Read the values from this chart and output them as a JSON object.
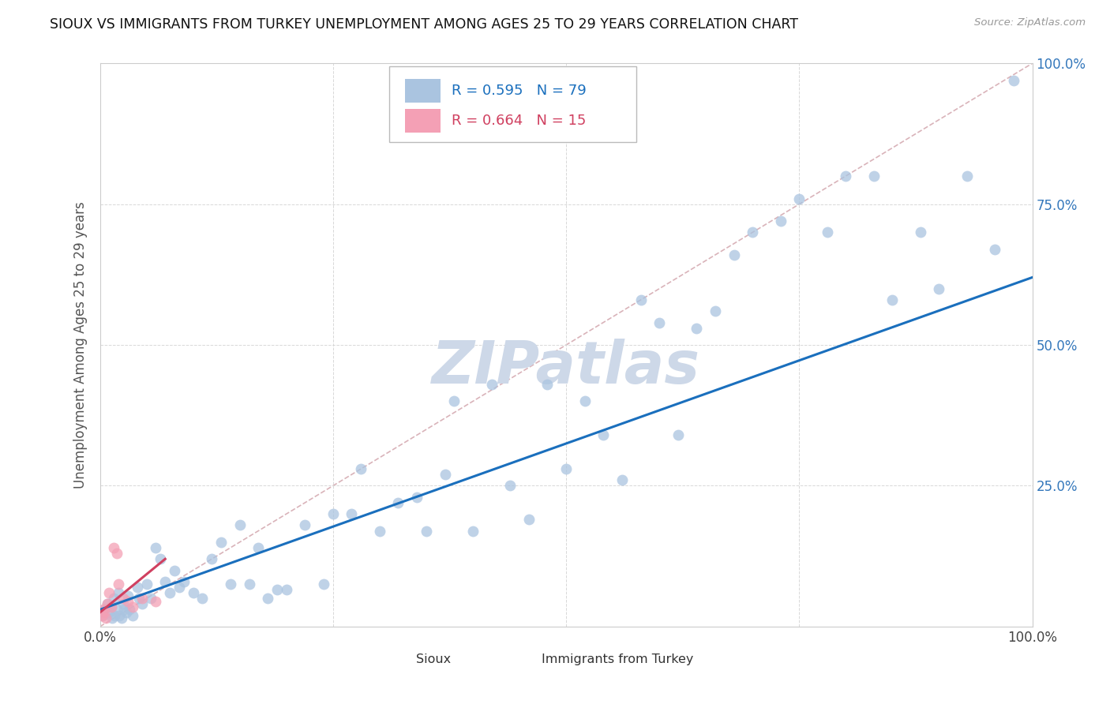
{
  "title": "SIOUX VS IMMIGRANTS FROM TURKEY UNEMPLOYMENT AMONG AGES 25 TO 29 YEARS CORRELATION CHART",
  "source": "Source: ZipAtlas.com",
  "ylabel": "Unemployment Among Ages 25 to 29 years",
  "legend_label1": "Sioux",
  "legend_label2": "Immigrants from Turkey",
  "R1": "0.595",
  "N1": "79",
  "R2": "0.664",
  "N2": "15",
  "sioux_color": "#aac4e0",
  "turkey_color": "#f4a0b5",
  "trendline1_color": "#1a6fbd",
  "trendline2_color": "#d04060",
  "diagonal_color": "#d0a0a8",
  "watermark_color": "#cdd8e8",
  "sioux_x": [
    0.3,
    0.5,
    0.8,
    1.0,
    1.2,
    1.3,
    1.5,
    1.6,
    1.8,
    2.0,
    2.1,
    2.3,
    2.5,
    2.6,
    2.8,
    3.0,
    3.2,
    3.5,
    4.0,
    4.2,
    4.5,
    5.0,
    5.5,
    6.0,
    6.5,
    7.0,
    7.5,
    8.0,
    8.5,
    9.0,
    10.0,
    11.0,
    12.0,
    13.0,
    14.0,
    15.0,
    16.0,
    17.0,
    18.0,
    19.0,
    20.0,
    22.0,
    24.0,
    25.0,
    27.0,
    28.0,
    30.0,
    32.0,
    34.0,
    35.0,
    37.0,
    38.0,
    40.0,
    42.0,
    44.0,
    46.0,
    48.0,
    50.0,
    52.0,
    54.0,
    56.0,
    58.0,
    60.0,
    62.0,
    64.0,
    66.0,
    68.0,
    70.0,
    73.0,
    75.0,
    78.0,
    80.0,
    83.0,
    85.0,
    88.0,
    90.0,
    93.0,
    96.0,
    98.0
  ],
  "sioux_y": [
    2.0,
    3.0,
    4.0,
    2.5,
    3.5,
    1.5,
    5.0,
    2.0,
    3.0,
    6.0,
    2.0,
    1.5,
    4.0,
    3.0,
    2.5,
    5.5,
    3.0,
    2.0,
    7.0,
    5.0,
    4.0,
    7.5,
    5.0,
    14.0,
    12.0,
    8.0,
    6.0,
    10.0,
    7.0,
    8.0,
    6.0,
    5.0,
    12.0,
    15.0,
    7.5,
    18.0,
    7.5,
    14.0,
    5.0,
    6.5,
    6.5,
    18.0,
    7.5,
    20.0,
    20.0,
    28.0,
    17.0,
    22.0,
    23.0,
    17.0,
    27.0,
    40.0,
    17.0,
    43.0,
    25.0,
    19.0,
    43.0,
    28.0,
    40.0,
    34.0,
    26.0,
    58.0,
    54.0,
    34.0,
    53.0,
    56.0,
    66.0,
    70.0,
    72.0,
    76.0,
    70.0,
    80.0,
    80.0,
    58.0,
    70.0,
    60.0,
    80.0,
    67.0,
    97.0
  ],
  "turkey_x": [
    0.2,
    0.4,
    0.5,
    0.6,
    0.8,
    1.0,
    1.2,
    1.5,
    1.8,
    2.0,
    2.5,
    3.0,
    3.5,
    4.5,
    6.0
  ],
  "turkey_y": [
    2.0,
    3.0,
    2.5,
    1.5,
    4.0,
    6.0,
    3.5,
    14.0,
    13.0,
    7.5,
    5.0,
    4.5,
    3.5,
    5.0,
    4.5
  ],
  "trendline1_x0": 0,
  "trendline1_x1": 100,
  "trendline1_y0": 3,
  "trendline1_y1": 62,
  "trendline2_x0": 0.0,
  "trendline2_x1": 7.0,
  "trendline2_y0": 2.5,
  "trendline2_y1": 12.0,
  "xlim": [
    0,
    100
  ],
  "ylim": [
    0,
    100
  ],
  "xticks": [
    0,
    25,
    50,
    75,
    100
  ],
  "yticks": [
    0,
    25,
    50,
    75,
    100
  ],
  "ytick_labels_right": [
    "",
    "25.0%",
    "50.0%",
    "75.0%",
    "100.0%"
  ],
  "xtick_labels": [
    "0.0%",
    "",
    "",
    "",
    "100.0%"
  ]
}
